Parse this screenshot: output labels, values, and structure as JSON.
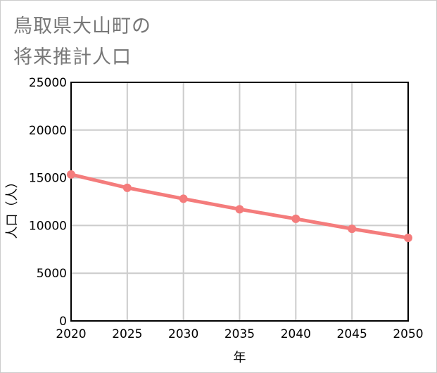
{
  "chart_data": {
    "type": "line",
    "title_lines": [
      "鳥取県大山町の",
      "将来推計人口"
    ],
    "xlabel": "年",
    "ylabel": "人口（人）",
    "x": [
      2020,
      2025,
      2030,
      2035,
      2040,
      2045,
      2050
    ],
    "series": [
      {
        "name": "人口",
        "values": [
          15350,
          13950,
          12800,
          11700,
          10700,
          9650,
          8700
        ]
      }
    ],
    "xlim": [
      2020,
      2050
    ],
    "ylim": [
      0,
      25000
    ],
    "yticks": [
      "0",
      "5000",
      "10000",
      "15000",
      "20000",
      "25000"
    ],
    "xticks": [
      "2020",
      "2025",
      "2030",
      "2035",
      "2040",
      "2045",
      "2050"
    ],
    "grid": true,
    "line_color": "#f47c7c",
    "grid_color": "#cccccc"
  }
}
